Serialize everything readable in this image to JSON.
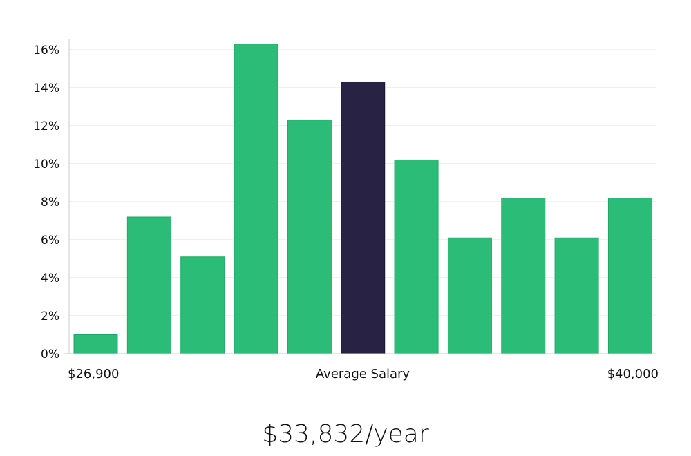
{
  "chart_data": {
    "type": "bar",
    "x_axis": {
      "left_label": "$26,900",
      "center_label": "Average Salary",
      "right_label": "$40,000"
    },
    "y_ticks": [
      "0%",
      "2%",
      "4%",
      "6%",
      "8%",
      "10%",
      "12%",
      "14%",
      "16%"
    ],
    "ylim": [
      0,
      17
    ],
    "values": [
      1.0,
      7.2,
      5.1,
      16.3,
      12.3,
      14.3,
      10.2,
      6.1,
      8.2,
      6.1,
      8.2
    ],
    "highlight_index": 5,
    "colors": {
      "bar": "#2bbd77",
      "highlight": "#282344",
      "grid": "#e2e2e2",
      "axis": "#cccccc"
    },
    "grid": true
  },
  "salary_text": "$33,832/year"
}
